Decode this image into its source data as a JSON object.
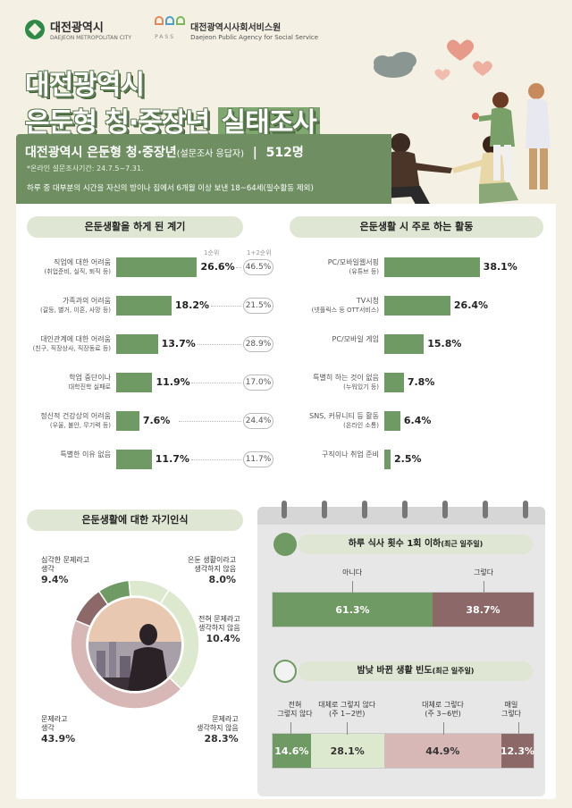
{
  "logos": {
    "city": "대전광역시",
    "city_sub": "DAEJEON METROPOLITAN CITY",
    "pass": "PASS",
    "agency": "대전광역시사회서비스원",
    "agency_sub": "Daejeon Public Agency for Social Service"
  },
  "header": {
    "title_line1": "대전광역시",
    "title_line2a": "은둔형 청·중장년 ",
    "title_line2b": "실태조사",
    "subject": "대전광역시 은둔형 청·중장년",
    "subject_note": "(설문조사 응답자)",
    "separator": "|",
    "count": "512명",
    "period": "*온라인 설문조사기간: 24.7.5~7.31.",
    "definition": "하루 중 대부분의 시간을 자신의 방이나 집에서 6개월 이상 보낸 18~64세(필수활동 제외)"
  },
  "colors": {
    "green": "#6f9a63",
    "mauve": "#8c6868",
    "pink": "#d8b7b7",
    "light_green": "#dde9cf",
    "pill": "#dfe6d3"
  },
  "chart_data": [
    {
      "type": "bar",
      "title": "은둔생활을 하게 된 계기",
      "rank_headers": [
        "1순위",
        "1+2순위"
      ],
      "categories": [
        [
          "직업에 대한 어려움",
          "(취업준비, 실직, 퇴직 등)"
        ],
        [
          "가족과의 어려움",
          "(갈등, 별거, 이혼, 사망 등)"
        ],
        [
          "대인관계에 대한 어려움",
          "(친구, 직장상사, 직장동료 등)"
        ],
        [
          "학업 중단이나",
          "대학진학 실패로"
        ],
        [
          "정신적 건강상의 어려움",
          "(우울, 불안, 무기력 등)"
        ],
        [
          "특별한 이유 없음",
          ""
        ]
      ],
      "series": [
        {
          "name": "1순위",
          "values": [
            26.6,
            18.2,
            13.7,
            11.9,
            7.6,
            11.7
          ]
        },
        {
          "name": "1+2순위",
          "values": [
            46.5,
            21.5,
            28.9,
            17.0,
            24.4,
            11.7
          ]
        }
      ],
      "labels_first": [
        "26.6%",
        "18.2%",
        "13.7%",
        "11.9%",
        "7.6%",
        "11.7%"
      ],
      "labels_combined": [
        "46.5%",
        "21.5%",
        "28.9%",
        "17.0%",
        "24.4%",
        "11.7%"
      ]
    },
    {
      "type": "bar",
      "title": "은둔생활 시 주로 하는 활동",
      "categories": [
        [
          "PC/모바일웹서핑",
          "(유튜브 등)"
        ],
        [
          "TV시청",
          "(넷플릭스 등 OTT서비스)"
        ],
        [
          "PC/모바일 게임",
          ""
        ],
        [
          "특별히 하는 것이 없음",
          "(누워있기 등)"
        ],
        [
          "SNS, 커뮤니티 등 활동",
          "(온라인 소통)"
        ],
        [
          "구직이나 취업 준비",
          ""
        ]
      ],
      "values": [
        38.1,
        26.4,
        15.8,
        7.8,
        6.4,
        2.5
      ],
      "labels": [
        "38.1%",
        "26.4%",
        "15.8%",
        "7.8%",
        "6.4%",
        "2.5%"
      ]
    },
    {
      "type": "pie",
      "title": "은둔생활에 대한 자기인식",
      "slices": [
        {
          "label_lines": [
            "은둔 생활이라고",
            "생각하지 않음"
          ],
          "value": 8.0,
          "text": "8.0%"
        },
        {
          "label_lines": [
            "전혀 문제라고",
            "생각하지 않음"
          ],
          "value": 10.4,
          "text": "10.4%"
        },
        {
          "label_lines": [
            "문제라고",
            "생각하지 않음"
          ],
          "value": 28.3,
          "text": "28.3%"
        },
        {
          "label_lines": [
            "문제라고",
            "생각"
          ],
          "value": 43.9,
          "text": "43.9%"
        },
        {
          "label_lines": [
            "심각한 문제라고",
            "생각"
          ],
          "value": 9.4,
          "text": "9.4%"
        }
      ]
    },
    {
      "type": "bar",
      "title": "하루 식사 횟수 1회 이하",
      "title_note": "(최근 일주일)",
      "stacked": true,
      "categories": [
        "아니다",
        "그렇다"
      ],
      "values": [
        61.3,
        38.7
      ],
      "labels": [
        "61.3%",
        "38.7%"
      ]
    },
    {
      "type": "bar",
      "title": "밤낮 바뀐 생활 빈도",
      "title_note": "(최근 일주일)",
      "stacked": true,
      "categories": [
        [
          "전혀",
          "그렇지 않다"
        ],
        [
          "대체로 그렇지 않다",
          "(주 1~2번)"
        ],
        [
          "대체로 그렇다",
          "(주 3~6번)"
        ],
        [
          "매일",
          "그렇다"
        ]
      ],
      "values": [
        14.6,
        28.1,
        44.9,
        12.3
      ],
      "labels": [
        "14.6%",
        "28.1%",
        "44.9%",
        "12.3%"
      ]
    }
  ]
}
